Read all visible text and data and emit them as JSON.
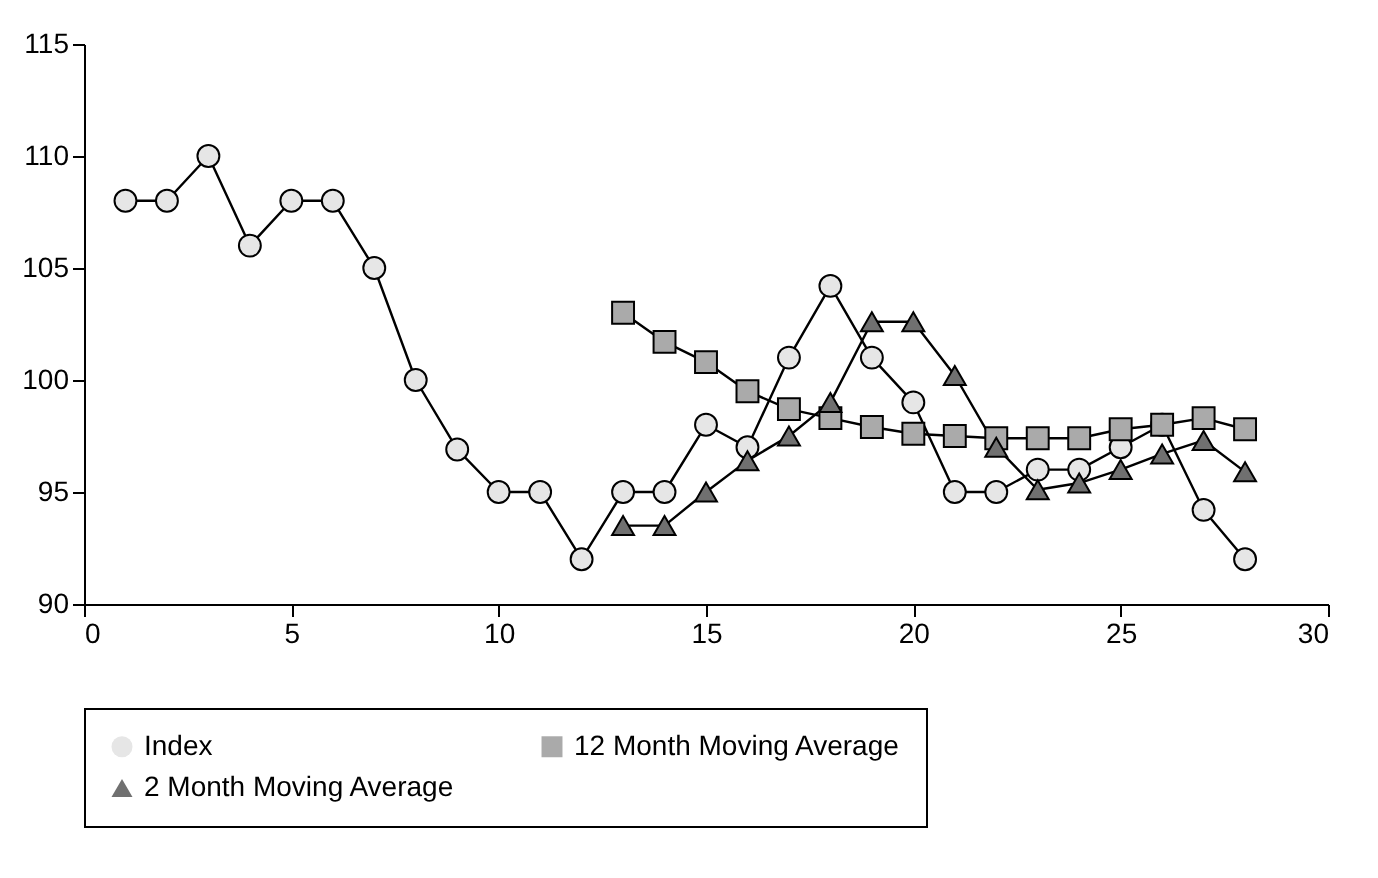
{
  "chart_data": {
    "type": "line",
    "xlim": [
      0,
      30
    ],
    "xticks": [
      0,
      5,
      10,
      15,
      20,
      25,
      30
    ],
    "ylim": [
      90,
      115
    ],
    "yticks": [
      90,
      95,
      100,
      105,
      110,
      115
    ],
    "grid": false,
    "legend": "bottom",
    "line_style": "solid",
    "series": [
      {
        "name": "Index",
        "color": "#e6e6e6",
        "marker": "circle",
        "x": [
          1,
          2,
          3,
          4,
          5,
          6,
          7,
          8,
          9,
          10,
          11,
          12,
          13,
          14,
          15,
          16,
          17,
          18,
          19,
          20,
          21,
          22,
          23,
          24,
          25,
          26,
          27,
          28
        ],
        "values": [
          108,
          108,
          110,
          106,
          108,
          108,
          105,
          100,
          96.9,
          95,
          95,
          92,
          95,
          95,
          98,
          97,
          101,
          104.2,
          101,
          99,
          95,
          95,
          96,
          96,
          97,
          98,
          94.2,
          92
        ]
      },
      {
        "name": "12 Month Moving Average",
        "color": "#aaaaaa",
        "marker": "square",
        "x": [
          13,
          14,
          15,
          16,
          17,
          18,
          19,
          20,
          21,
          22,
          23,
          24,
          25,
          26,
          27,
          28
        ],
        "values": [
          103,
          101.7,
          100.8,
          99.5,
          98.7,
          98.3,
          97.9,
          97.6,
          97.5,
          97.4,
          97.4,
          97.4,
          97.8,
          98,
          98.3,
          97.8
        ]
      },
      {
        "name": "2 Month Moving Average",
        "color": "#707070",
        "marker": "triangle",
        "x": [
          13,
          14,
          15,
          16,
          17,
          18,
          19,
          20,
          21,
          22,
          23,
          24,
          25,
          26,
          27,
          28
        ],
        "values": [
          93.5,
          93.5,
          95,
          96.4,
          97.5,
          99,
          102.6,
          102.6,
          100.2,
          97,
          95.1,
          95.4,
          96,
          96.7,
          97.3,
          95.9
        ]
      }
    ]
  }
}
